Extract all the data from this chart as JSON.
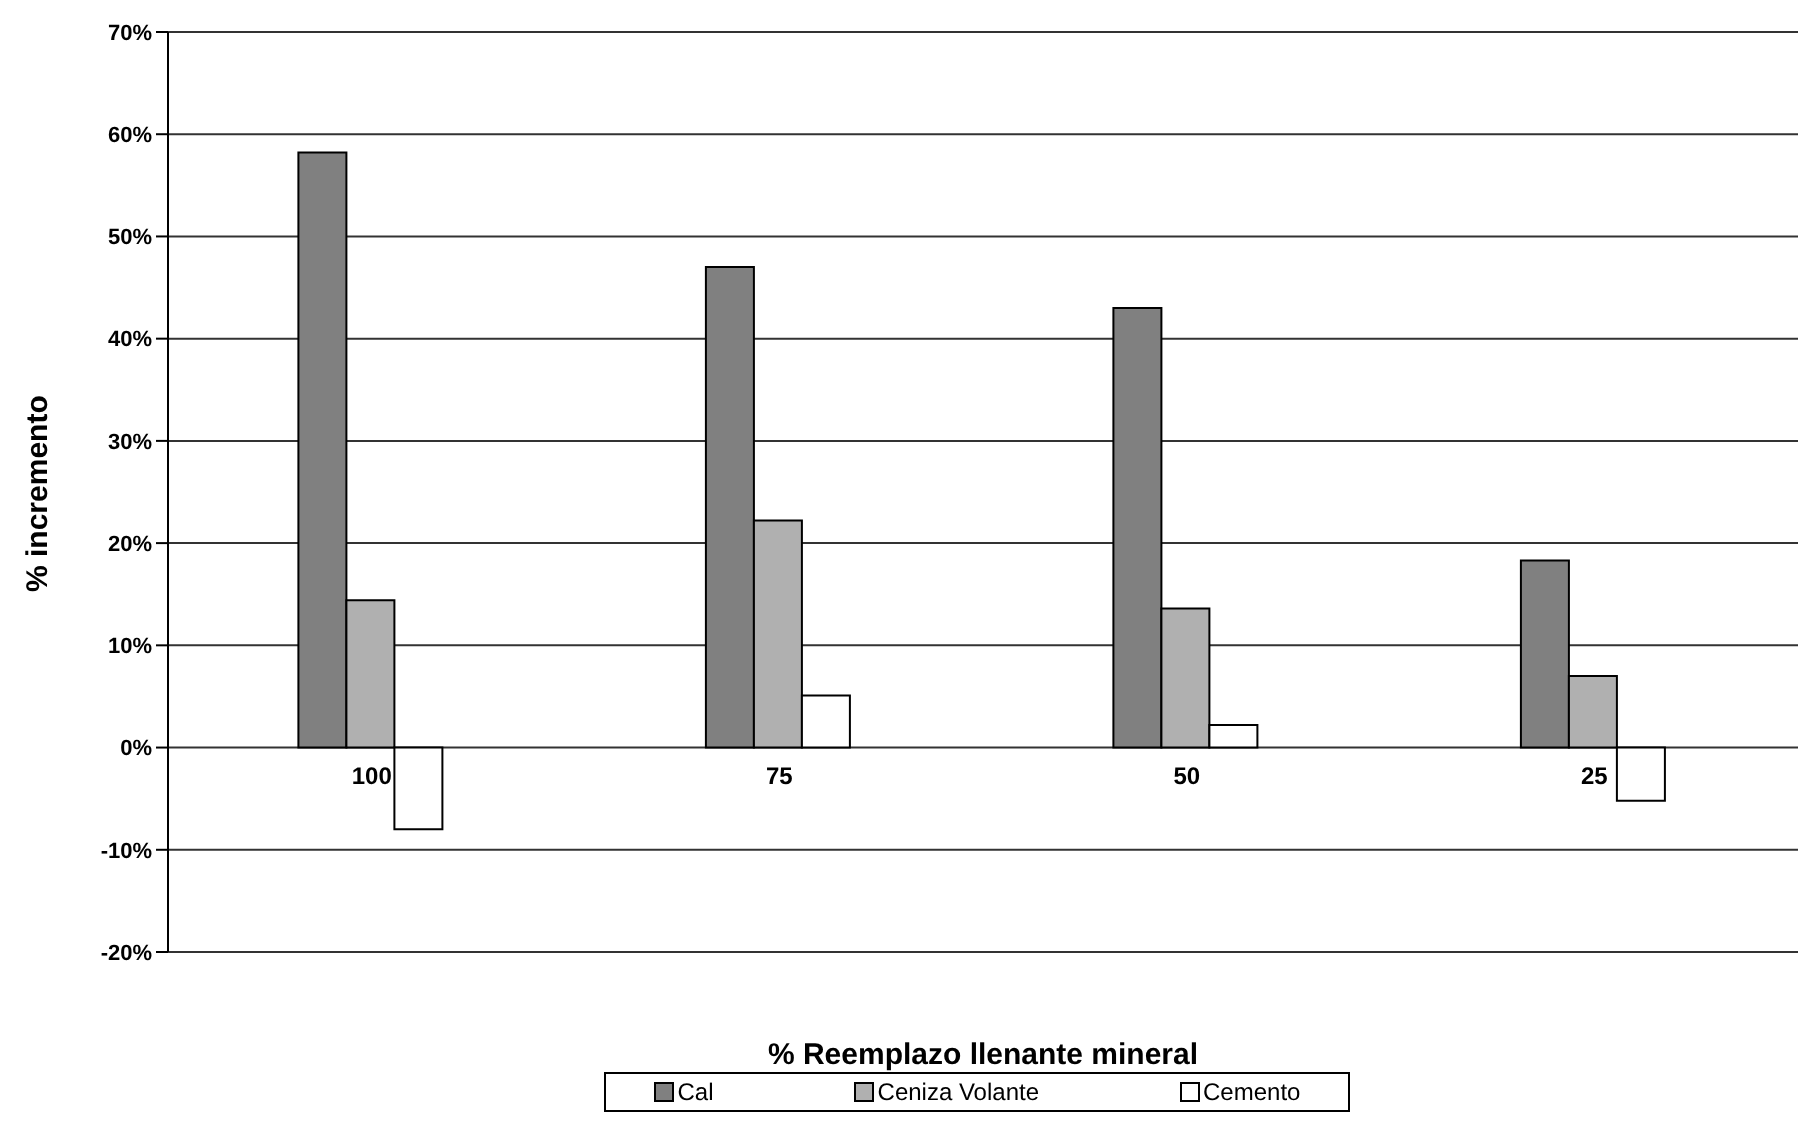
{
  "chart_data": {
    "type": "bar",
    "xlabel": "% Reemplazo llenante mineral",
    "ylabel": "% incremento",
    "categories": [
      "100",
      "75",
      "50",
      "25"
    ],
    "series": [
      {
        "name": "Cal",
        "color": "#808080",
        "values": [
          58.2,
          47.0,
          43.0,
          18.3
        ]
      },
      {
        "name": "Ceniza Volante",
        "color": "#b0b0b0",
        "values": [
          14.4,
          22.2,
          13.6,
          7.0
        ]
      },
      {
        "name": "Cemento",
        "color": "#ffffff",
        "values": [
          -8.0,
          5.1,
          2.2,
          -5.2
        ]
      }
    ],
    "ylim": [
      -20,
      70
    ],
    "yticks": [
      {
        "value": -20,
        "label": "-20%"
      },
      {
        "value": -10,
        "label": "-10%"
      },
      {
        "value": 0,
        "label": "0%"
      },
      {
        "value": 10,
        "label": "10%"
      },
      {
        "value": 20,
        "label": "20%"
      },
      {
        "value": 30,
        "label": "30%"
      },
      {
        "value": 40,
        "label": "40%"
      },
      {
        "value": 50,
        "label": "50%"
      },
      {
        "value": 60,
        "label": "60%"
      },
      {
        "value": 70,
        "label": "70%"
      }
    ],
    "grid": "y",
    "legend": "bottom"
  }
}
